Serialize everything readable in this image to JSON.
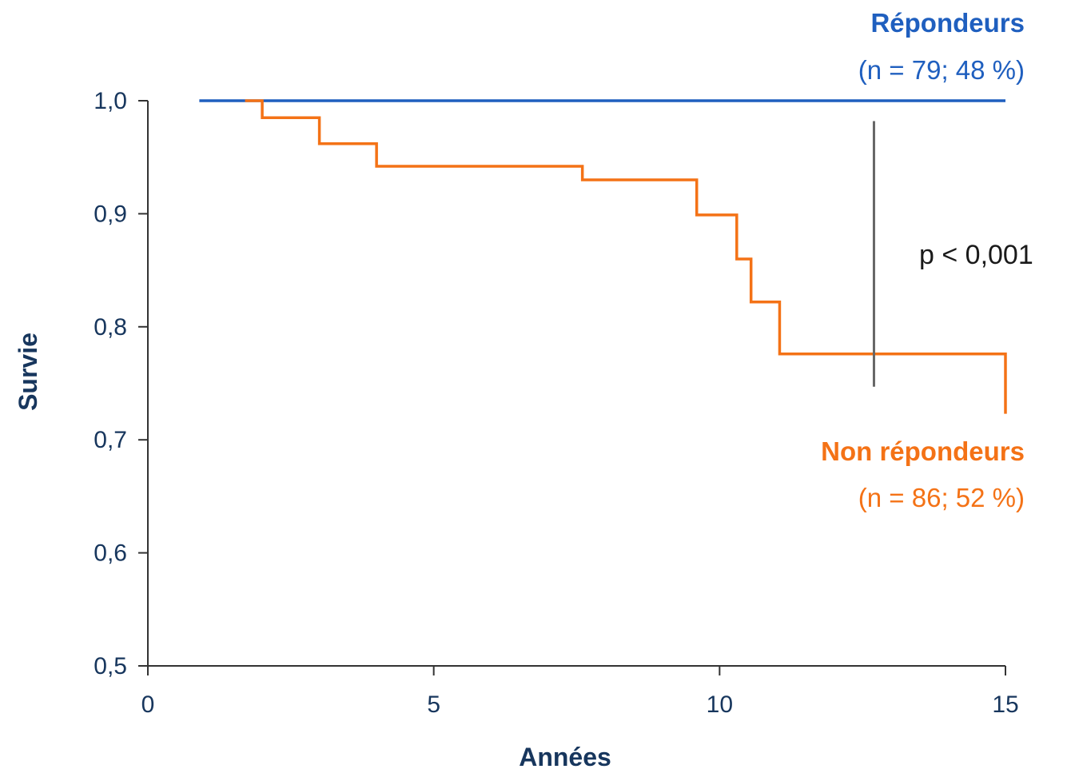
{
  "chart_data": {
    "type": "line",
    "step": true,
    "xlabel": "Années",
    "ylabel": "Survie",
    "xlim": [
      0,
      15
    ],
    "ylim": [
      0.5,
      1.0
    ],
    "xticks": [
      {
        "value": 0,
        "label": "0"
      },
      {
        "value": 5,
        "label": "5"
      },
      {
        "value": 10,
        "label": "10"
      },
      {
        "value": 15,
        "label": "15"
      }
    ],
    "yticks": [
      {
        "value": 0.5,
        "label": "0,5"
      },
      {
        "value": 0.6,
        "label": "0,6"
      },
      {
        "value": 0.7,
        "label": "0,7"
      },
      {
        "value": 0.8,
        "label": "0,8"
      },
      {
        "value": 0.9,
        "label": "0,9"
      },
      {
        "value": 1.0,
        "label": "1,0"
      }
    ],
    "grid": false,
    "series": [
      {
        "name": "Répondeurs",
        "subtitle": "(n = 79; 48 %)",
        "color": "#1f5fbf",
        "x": [
          0.9,
          15
        ],
        "y": [
          1.0,
          1.0
        ]
      },
      {
        "name": "Non répondeurs",
        "subtitle": "(n = 86; 52 %)",
        "color": "#f47216",
        "x": [
          1.7,
          2.0,
          3.0,
          4.0,
          7.6,
          9.6,
          10.3,
          10.55,
          11.05,
          15
        ],
        "y": [
          1.0,
          0.985,
          0.962,
          0.942,
          0.93,
          0.899,
          0.86,
          0.822,
          0.776,
          0.723
        ]
      }
    ],
    "annotation": {
      "text": "p < 0,001",
      "x": 12.7,
      "y_range": [
        0.747,
        0.982
      ],
      "color": "#666666"
    }
  }
}
